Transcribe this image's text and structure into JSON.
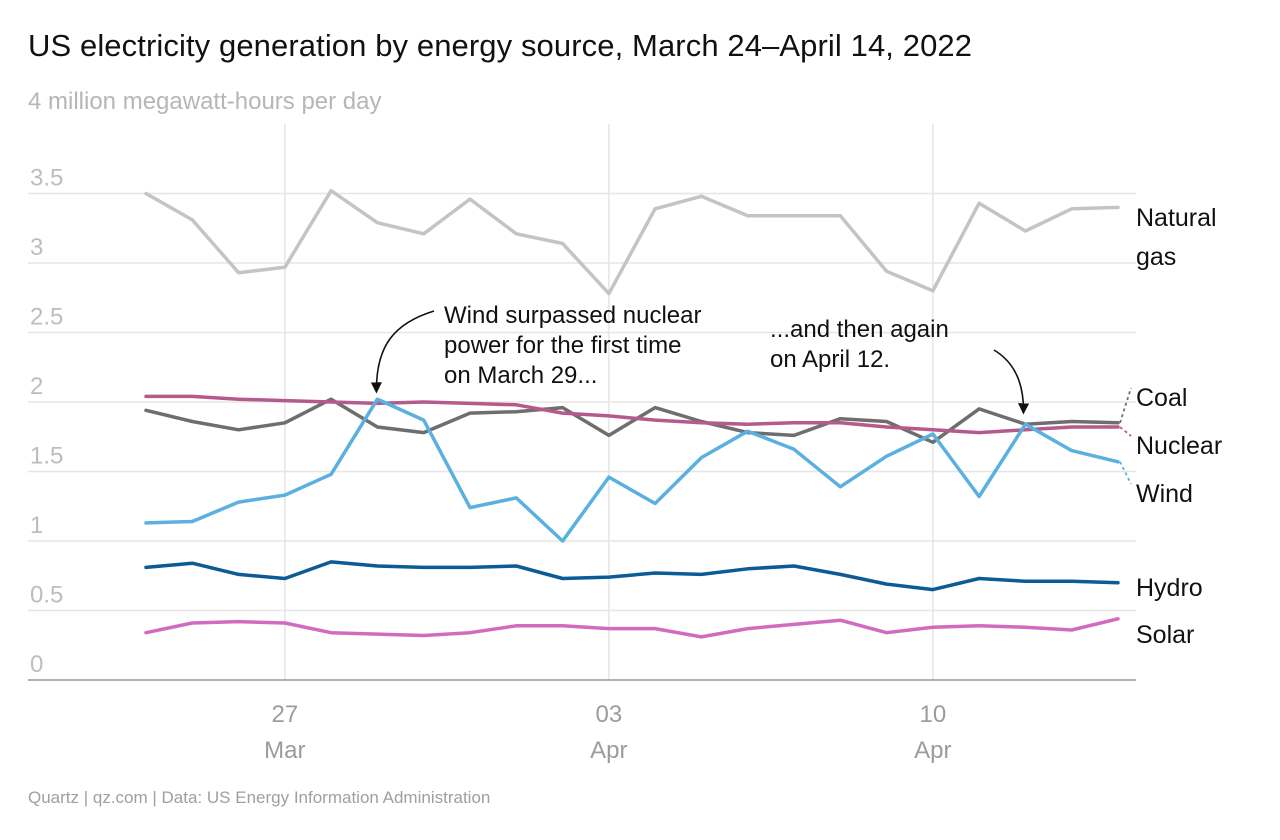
{
  "title": "US electricity generation by energy source, March 24–April 14, 2022",
  "subtitle": "4 million megawatt-hours per day",
  "source": "Quartz | qz.com | Data: US Energy Information Administration",
  "chart_data": {
    "type": "line",
    "title": "US electricity generation by energy source, March 24–April 14, 2022",
    "ylabel": "4 million megawatt-hours per day",
    "xlabel": "",
    "ylim": [
      0,
      4
    ],
    "grid": true,
    "y_ticks": [
      "0",
      "0.5",
      "1",
      "1.5",
      "2",
      "2.5",
      "3",
      "3.5"
    ],
    "x_ticks": [
      {
        "day": "27",
        "month": "Mar",
        "date": "2022-03-27"
      },
      {
        "day": "03",
        "month": "Apr",
        "date": "2022-04-03"
      },
      {
        "day": "10",
        "month": "Apr",
        "date": "2022-04-10"
      }
    ],
    "x": [
      "2022-03-24",
      "2022-03-25",
      "2022-03-26",
      "2022-03-27",
      "2022-03-28",
      "2022-03-29",
      "2022-03-30",
      "2022-03-31",
      "2022-04-01",
      "2022-04-02",
      "2022-04-03",
      "2022-04-04",
      "2022-04-05",
      "2022-04-06",
      "2022-04-07",
      "2022-04-08",
      "2022-04-09",
      "2022-04-10",
      "2022-04-11",
      "2022-04-12",
      "2022-04-13",
      "2022-04-14"
    ],
    "series": [
      {
        "name": "Natural gas",
        "color": "#c4c4c4",
        "values": [
          3.5,
          3.31,
          2.93,
          2.97,
          3.52,
          3.29,
          3.21,
          3.46,
          3.21,
          3.14,
          2.78,
          3.39,
          3.48,
          3.34,
          3.34,
          3.34,
          2.94,
          2.8,
          3.43,
          3.23,
          3.39,
          3.4
        ]
      },
      {
        "name": "Coal",
        "color": "#6e6e6e",
        "values": [
          1.94,
          1.86,
          1.8,
          1.85,
          2.02,
          1.82,
          1.78,
          1.92,
          1.93,
          1.96,
          1.76,
          1.96,
          1.86,
          1.78,
          1.76,
          1.88,
          1.86,
          1.71,
          1.95,
          1.84,
          1.86,
          1.85
        ]
      },
      {
        "name": "Nuclear",
        "color": "#b45a8d",
        "values": [
          2.04,
          2.04,
          2.02,
          2.01,
          2.0,
          1.99,
          2.0,
          1.99,
          1.98,
          1.92,
          1.9,
          1.87,
          1.85,
          1.84,
          1.85,
          1.85,
          1.82,
          1.8,
          1.78,
          1.8,
          1.82,
          1.82
        ]
      },
      {
        "name": "Wind",
        "color": "#5ab0e0",
        "values": [
          1.13,
          1.14,
          1.28,
          1.33,
          1.48,
          2.02,
          1.87,
          1.24,
          1.31,
          1.0,
          1.46,
          1.27,
          1.6,
          1.79,
          1.66,
          1.39,
          1.61,
          1.77,
          1.32,
          1.84,
          1.65,
          1.57
        ]
      },
      {
        "name": "Hydro",
        "color": "#0b5c94",
        "values": [
          0.81,
          0.84,
          0.76,
          0.73,
          0.85,
          0.82,
          0.81,
          0.81,
          0.82,
          0.73,
          0.74,
          0.77,
          0.76,
          0.8,
          0.82,
          0.76,
          0.69,
          0.65,
          0.73,
          0.71,
          0.71,
          0.7
        ]
      },
      {
        "name": "Solar",
        "color": "#d16bc0",
        "values": [
          0.34,
          0.41,
          0.42,
          0.41,
          0.34,
          0.33,
          0.32,
          0.34,
          0.39,
          0.39,
          0.37,
          0.37,
          0.31,
          0.37,
          0.4,
          0.43,
          0.34,
          0.38,
          0.39,
          0.38,
          0.36,
          0.44
        ]
      }
    ],
    "series_labels": [
      {
        "name": "Natural gas",
        "lines": [
          "Natural",
          "gas"
        ]
      },
      {
        "name": "Coal",
        "lines": [
          "Coal"
        ]
      },
      {
        "name": "Nuclear",
        "lines": [
          "Nuclear"
        ]
      },
      {
        "name": "Wind",
        "lines": [
          "Wind"
        ]
      },
      {
        "name": "Hydro",
        "lines": [
          "Hydro"
        ]
      },
      {
        "name": "Solar",
        "lines": [
          "Solar"
        ]
      }
    ],
    "annotations": [
      {
        "lines": [
          "Wind surpassed nuclear",
          "power for the first time",
          "on March 29..."
        ],
        "points_to": "2022-03-29"
      },
      {
        "lines": [
          "...and then again",
          "on April 12."
        ],
        "points_to": "2022-04-12"
      }
    ]
  }
}
